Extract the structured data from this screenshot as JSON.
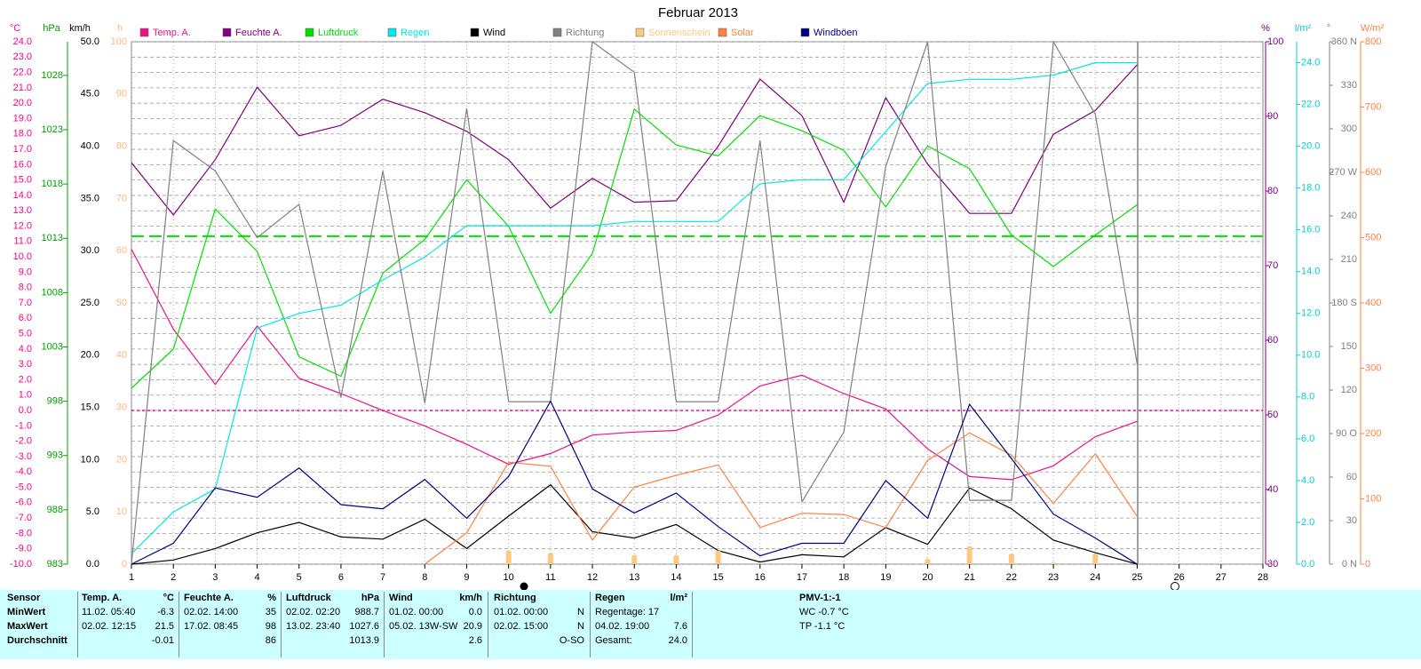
{
  "chart_data": {
    "type": "line",
    "title": "Februar 2013",
    "x": [
      1,
      2,
      3,
      4,
      5,
      6,
      7,
      8,
      9,
      10,
      11,
      12,
      13,
      14,
      15,
      16,
      17,
      18,
      19,
      20,
      21,
      22,
      23,
      24,
      25
    ],
    "xlim": [
      1,
      28
    ],
    "xticks": [
      1,
      2,
      3,
      4,
      5,
      6,
      7,
      8,
      9,
      10,
      11,
      12,
      13,
      14,
      15,
      16,
      17,
      18,
      19,
      20,
      21,
      22,
      23,
      24,
      25,
      26,
      27,
      28
    ],
    "grid": true,
    "axes": {
      "temp": {
        "unit": "°C",
        "color": "#ff0080",
        "lim": [
          -10,
          24
        ],
        "ticks": [
          {
            "value": -10,
            "label": "-10.0"
          },
          {
            "value": -9,
            "label": "-9.0"
          },
          {
            "value": -8,
            "label": "-8.0"
          },
          {
            "value": -7,
            "label": "-7.0"
          },
          {
            "value": -6,
            "label": "-6.0"
          },
          {
            "value": -5,
            "label": "-5.0"
          },
          {
            "value": -4,
            "label": "-4.0"
          },
          {
            "value": -3,
            "label": "-3.0"
          },
          {
            "value": -2,
            "label": "-2.0"
          },
          {
            "value": -1,
            "label": "-1.0"
          },
          {
            "value": 0,
            "label": "0.0"
          },
          {
            "value": 1,
            "label": "1.0"
          },
          {
            "value": 2,
            "label": "2.0"
          },
          {
            "value": 3,
            "label": "3.0"
          },
          {
            "value": 4,
            "label": "4.0"
          },
          {
            "value": 5,
            "label": "5.0"
          },
          {
            "value": 6,
            "label": "6.0"
          },
          {
            "value": 7,
            "label": "7.0"
          },
          {
            "value": 8,
            "label": "8.0"
          },
          {
            "value": 9,
            "label": "9.0"
          },
          {
            "value": 10,
            "label": "10.0"
          },
          {
            "value": 11,
            "label": "11.0"
          },
          {
            "value": 12,
            "label": "12.0"
          },
          {
            "value": 13,
            "label": "13.0"
          },
          {
            "value": 14,
            "label": "14.0"
          },
          {
            "value": 15,
            "label": "15.0"
          },
          {
            "value": 16,
            "label": "16.0"
          },
          {
            "value": 17,
            "label": "17.0"
          },
          {
            "value": 18,
            "label": "18.0"
          },
          {
            "value": 19,
            "label": "19.0"
          },
          {
            "value": 20,
            "label": "20.0"
          },
          {
            "value": 21,
            "label": "21.0"
          },
          {
            "value": 22,
            "label": "22.0"
          },
          {
            "value": 23,
            "label": "23.0"
          },
          {
            "value": 24,
            "label": "24.0"
          }
        ]
      },
      "hpa": {
        "unit": "hPa",
        "color": "#00a000",
        "lim": [
          983,
          1031.1
        ],
        "ticks": [
          983,
          988,
          993,
          998,
          1003,
          1008,
          1013,
          1018,
          1023,
          1028
        ]
      },
      "kmh": {
        "unit": "km/h",
        "color": "#000000",
        "lim": [
          0,
          50
        ],
        "ticks": [
          {
            "value": 0,
            "label": "0.0"
          },
          {
            "value": 5,
            "label": "5.0"
          },
          {
            "value": 10,
            "label": "10.0"
          },
          {
            "value": 15,
            "label": "15.0"
          },
          {
            "value": 20,
            "label": "20.0"
          },
          {
            "value": 25,
            "label": "25.0"
          },
          {
            "value": 30,
            "label": "30.0"
          },
          {
            "value": 35,
            "label": "35.0"
          },
          {
            "value": 40,
            "label": "40.0"
          },
          {
            "value": 45,
            "label": "45.0"
          },
          {
            "value": 50,
            "label": "50.0"
          }
        ]
      },
      "h": {
        "unit": "h",
        "color": "#ffb878",
        "lim": [
          0,
          100
        ],
        "ticks": [
          0,
          10,
          20,
          30,
          40,
          50,
          60,
          70,
          80,
          90,
          100
        ]
      },
      "pct": {
        "unit": "%",
        "color": "#800080",
        "lim": [
          30,
          100
        ],
        "ticks": [
          30,
          40,
          50,
          60,
          70,
          80,
          90,
          100
        ]
      },
      "rain": {
        "unit": "l/m²",
        "color": "#00d0d0",
        "lim": [
          0,
          25
        ],
        "ticks": [
          {
            "value": 0,
            "label": "0.0"
          },
          {
            "value": 2,
            "label": "2.0"
          },
          {
            "value": 4,
            "label": "4.0"
          },
          {
            "value": 6,
            "label": "6.0"
          },
          {
            "value": 8,
            "label": "8.0"
          },
          {
            "value": 10,
            "label": "10.0"
          },
          {
            "value": 12,
            "label": "12.0"
          },
          {
            "value": 14,
            "label": "14.0"
          },
          {
            "value": 16,
            "label": "16.0"
          },
          {
            "value": 18,
            "label": "18.0"
          },
          {
            "value": 20,
            "label": "20.0"
          },
          {
            "value": 22,
            "label": "22.0"
          },
          {
            "value": 24,
            "label": "24.0"
          }
        ]
      },
      "dir": {
        "unit": "°",
        "color": "#808080",
        "lim": [
          0,
          360
        ],
        "ticks": [
          {
            "value": 0,
            "label": "0 N"
          },
          30,
          60,
          {
            "value": 90,
            "label": "90 O"
          },
          120,
          150,
          {
            "value": 180,
            "label": "180 S"
          },
          210,
          240,
          {
            "value": 270,
            "label": "270 W"
          },
          300,
          330,
          {
            "value": 360,
            "label": "360 N"
          }
        ]
      },
      "wm2": {
        "unit": "W/m²",
        "color": "#ff8040",
        "lim": [
          0,
          800
        ],
        "ticks": [
          0,
          100,
          200,
          300,
          400,
          500,
          600,
          700,
          800
        ]
      }
    },
    "series": [
      {
        "name": "Temp. A.",
        "color": "#f01080",
        "axis": "temp",
        "reference_line": 0,
        "values": [
          10.5,
          5.3,
          1.7,
          5.5,
          2.1,
          1.1,
          0.0,
          -1.0,
          -2.2,
          -3.5,
          -2.8,
          -1.6,
          -1.4,
          -1.3,
          -0.3,
          1.6,
          2.3,
          1.1,
          0.1,
          -2.5,
          -4.3,
          -4.5,
          -3.6,
          -1.7,
          -0.7
        ]
      },
      {
        "name": "Feuchte A.",
        "color": "#800080",
        "axis": "pct",
        "values": [
          83.8,
          76.8,
          84.2,
          93.9,
          87.4,
          88.8,
          92.3,
          90.5,
          88.0,
          84.2,
          77.7,
          81.7,
          78.5,
          78.7,
          86.0,
          95.0,
          90.1,
          78.5,
          92.5,
          83.6,
          77.0,
          77.0,
          87.6,
          90.8,
          96.9
        ]
      },
      {
        "name": "Luftdruck",
        "color": "#00e000",
        "axis": "hpa",
        "reference_line": 1013.2,
        "values": [
          999.2,
          1002.8,
          1015.7,
          1011.8,
          1002.1,
          1000.3,
          1009.8,
          1012.9,
          1018.4,
          1014.1,
          1006.1,
          1011.6,
          1024.9,
          1021.6,
          1020.6,
          1024.3,
          1022.9,
          1021.1,
          1015.9,
          1021.5,
          1019.4,
          1013.3,
          1010.4,
          1013.3,
          1016.1
        ]
      },
      {
        "name": "Regen",
        "color": "#00e8e8",
        "axis": "rain",
        "values": [
          0.5,
          2.5,
          3.6,
          11.3,
          12.0,
          12.4,
          13.6,
          14.7,
          16.2,
          16.2,
          16.2,
          16.2,
          16.4,
          16.4,
          16.4,
          18.2,
          18.4,
          18.4,
          20.7,
          23.0,
          23.2,
          23.2,
          23.4,
          24.0,
          24.0
        ]
      },
      {
        "name": "Wind",
        "color": "#000000",
        "axis": "kmh",
        "values": [
          0,
          0.4,
          1.5,
          3.0,
          4.0,
          2.6,
          2.4,
          4.3,
          1.5,
          4.6,
          7.6,
          3.1,
          2.5,
          3.8,
          1.3,
          0.2,
          0.9,
          0.7,
          3.5,
          1.9,
          7.3,
          5.3,
          2.3,
          1.1,
          0
        ]
      },
      {
        "name": "Richtung",
        "color": "#808080",
        "axis": "dir",
        "values": [
          0,
          292,
          271,
          225,
          248,
          115,
          271,
          111,
          314,
          112,
          112,
          360,
          339,
          112,
          112,
          292,
          43,
          91,
          274,
          360,
          44,
          44,
          360,
          310,
          138
        ]
      },
      {
        "name": "Sonnenschein",
        "color": "#ffc880",
        "axis": "h",
        "type": "bar",
        "values": [
          0,
          0,
          0,
          0,
          0,
          0,
          0,
          0,
          0,
          2.6,
          2.2,
          0,
          1.7,
          1.7,
          2.6,
          0,
          0,
          0,
          0,
          1.0,
          3.4,
          2.0,
          0.3,
          2.0,
          0
        ]
      },
      {
        "name": "Solar",
        "color": "#ff8040",
        "axis": "wm2",
        "values": [
          null,
          null,
          null,
          null,
          null,
          null,
          null,
          0,
          48,
          156,
          150,
          37,
          118,
          136,
          152,
          56,
          78,
          76,
          56,
          159,
          201,
          167,
          93,
          169,
          73
        ]
      },
      {
        "name": "Windböen",
        "color": "#000080",
        "axis": "kmh",
        "values": [
          0,
          2.0,
          7.3,
          6.4,
          9.2,
          5.7,
          5.3,
          8.1,
          4.4,
          8.4,
          15.6,
          7.2,
          4.9,
          6.8,
          3.6,
          0.8,
          2.0,
          2.0,
          8.0,
          4.4,
          15.3,
          10.1,
          4.8,
          2.5,
          0
        ]
      }
    ]
  },
  "table": {
    "columns": [
      {
        "name": "Sensor"
      },
      {
        "name": "Temp. A.",
        "unit": "°C"
      },
      {
        "name": "Feuchte A.",
        "unit": "%"
      },
      {
        "name": "Luftdruck",
        "unit": "hPa"
      },
      {
        "name": "Wind",
        "unit": "km/h"
      },
      {
        "name": "Richtung"
      },
      {
        "name": "Regen",
        "unit": "l/m²"
      },
      {
        "name": "PMV-1:-1"
      }
    ],
    "rows": [
      {
        "label": "MinWert",
        "cells": [
          {
            "left": "11.02. 05:40",
            "right": "-6.3"
          },
          {
            "left": "02.02. 14:00",
            "right": "35"
          },
          {
            "left": "02.02. 02:20",
            "right": "988.7"
          },
          {
            "left": "01.02. 00:00",
            "right": "0.0"
          },
          {
            "left": "01.02. 00:00",
            "right": "N"
          },
          {
            "left": "Regentage: 17"
          },
          {
            "left": "WC -0.7 °C"
          }
        ]
      },
      {
        "label": "MaxWert",
        "cells": [
          {
            "left": "02.02. 12:15",
            "right": "21.5"
          },
          {
            "left": "17.02. 08:45",
            "right": "98"
          },
          {
            "left": "13.02. 23:40",
            "right": "1027.6"
          },
          {
            "left": "05.02. 13W-SW",
            "right": "20.9"
          },
          {
            "left": "02.02. 15:00",
            "right": "N"
          },
          {
            "left": "04.02. 19:00",
            "right": "7.6"
          },
          {
            "left": "TP -1.1 °C"
          }
        ]
      },
      {
        "label": "Durchschnitt",
        "cells": [
          {
            "right": "-0.01"
          },
          {
            "right": "86"
          },
          {
            "right": "1013.9"
          },
          {
            "right": "2.6"
          },
          {
            "right": "O-SO"
          },
          {
            "left": "Gesamt:",
            "right": "24.0"
          }
        ]
      }
    ]
  }
}
